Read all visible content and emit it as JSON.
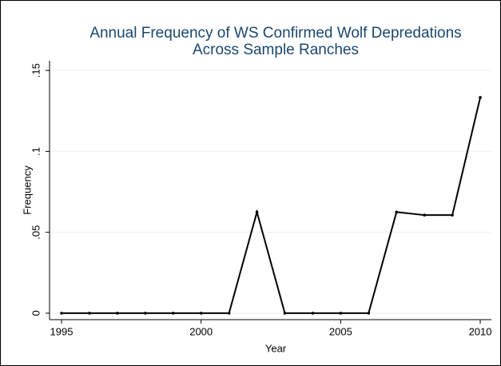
{
  "chart_data": {
    "type": "line",
    "title": [
      "Annual Frequency of WS Confirmed Wolf Depredations",
      "Across Sample Ranches"
    ],
    "x_label": "Year",
    "y_label": "Frequency",
    "x": [
      1995,
      1996,
      1997,
      1998,
      1999,
      2000,
      2001,
      2002,
      2003,
      2004,
      2005,
      2006,
      2007,
      2008,
      2009,
      2010
    ],
    "series": [
      {
        "name": "Frequency",
        "color": "#000000",
        "values": [
          0,
          0,
          0,
          0,
          0,
          0,
          0,
          0.0625,
          0,
          0,
          0,
          0,
          0.0625,
          0.0606,
          0.0606,
          0.1333
        ]
      }
    ],
    "xlim": [
      1994.57,
      2010.4
    ],
    "xticks": [
      1995,
      2000,
      2005,
      2010
    ],
    "ylim": [
      -0.004,
      0.156
    ],
    "yticks": [
      0,
      {
        "value": 0.05,
        "label": ".05"
      },
      {
        "value": 0.1,
        "label": ".1"
      },
      {
        "value": 0.15,
        "label": ".15"
      }
    ],
    "grid": true
  }
}
